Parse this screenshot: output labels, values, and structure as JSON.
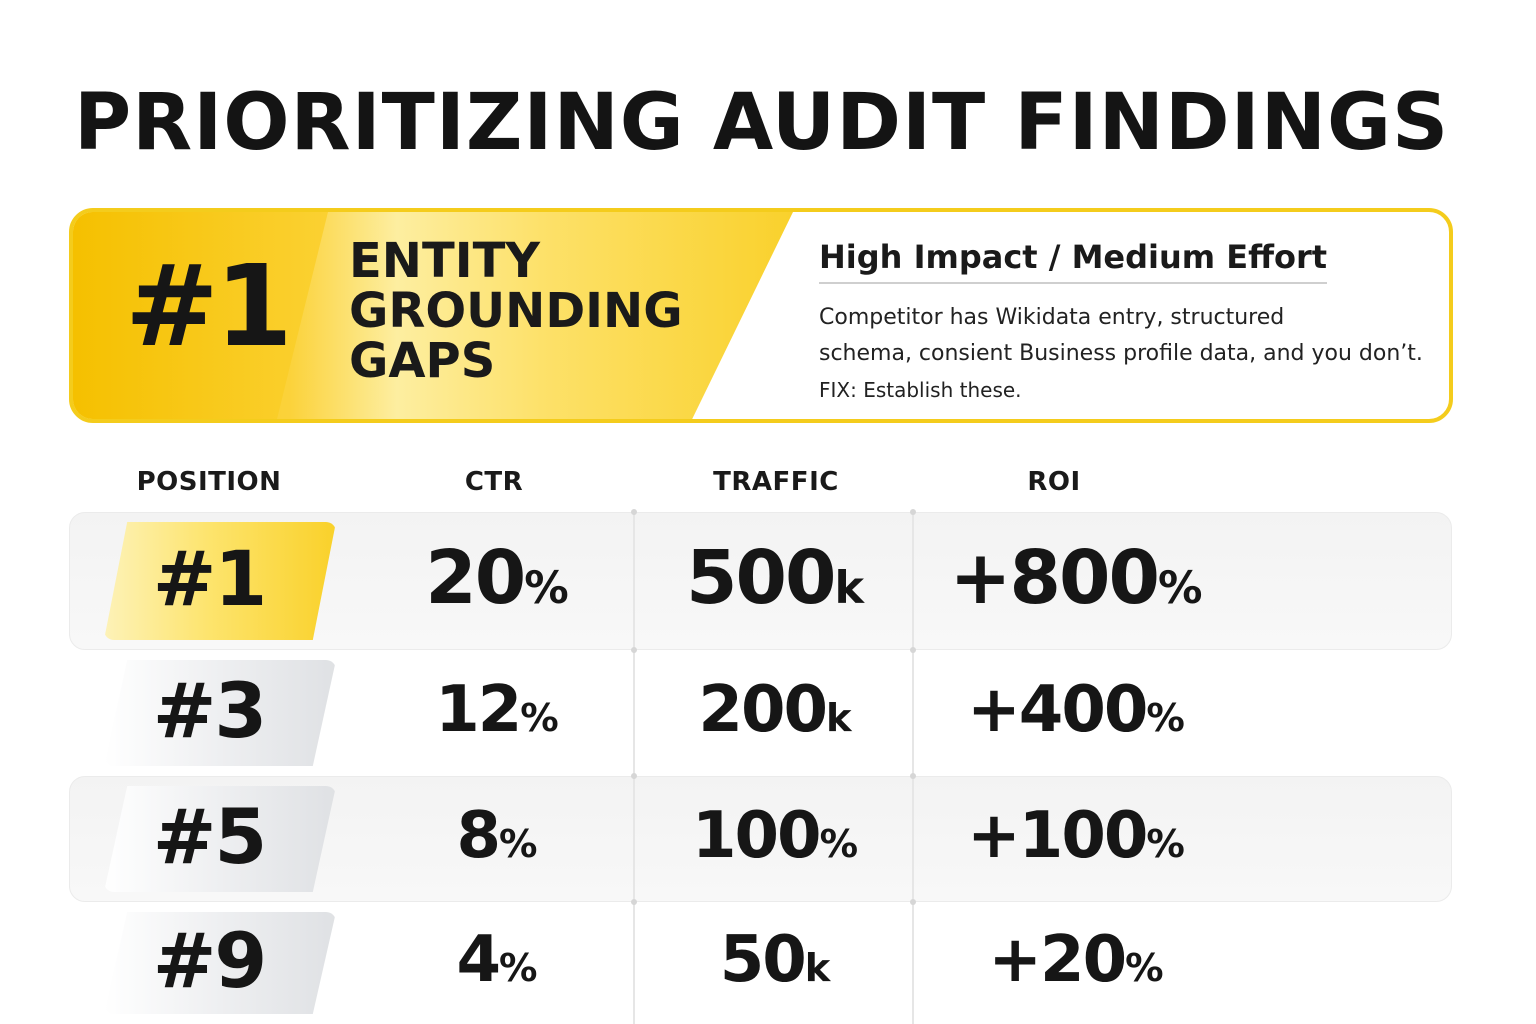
{
  "title": "PRIORITIZING AUDIT FINDINGS",
  "featured": {
    "rank": "#1",
    "heading_lines": [
      "ENTITY",
      "GROUNDING",
      "GAPS"
    ],
    "impact": "High Impact / Medium Effort",
    "description_lines": [
      "Competitor has Wikidata entry, structured",
      "schema, consient Business profile data, and you don’t."
    ],
    "fix": "FIX: Establish these.",
    "colors": {
      "accent": "#f4cc1c",
      "accent_dark": "#f5c000"
    }
  },
  "table": {
    "headers": {
      "position": "POSITION",
      "ctr": "CTR",
      "traffic": "TRAFFIC",
      "roi": "ROI"
    },
    "rows": [
      {
        "position": "#1",
        "ctr": "20",
        "ctr_unit": "%",
        "traffic": "500",
        "traffic_unit": "k",
        "roi": "+800",
        "roi_unit": "%",
        "highlight": "gold"
      },
      {
        "position": "#3",
        "ctr": "12",
        "ctr_unit": "%",
        "traffic": "200",
        "traffic_unit": "k",
        "roi": "+400",
        "roi_unit": "%",
        "highlight": "gray"
      },
      {
        "position": "#5",
        "ctr": "8",
        "ctr_unit": "%",
        "traffic": "100",
        "traffic_unit": "%",
        "roi": "+100",
        "roi_unit": "%",
        "highlight": "gray"
      },
      {
        "position": "#9",
        "ctr": "4",
        "ctr_unit": "%",
        "traffic": "50",
        "traffic_unit": "k",
        "roi": "+20",
        "roi_unit": "%",
        "highlight": "gray"
      }
    ]
  }
}
